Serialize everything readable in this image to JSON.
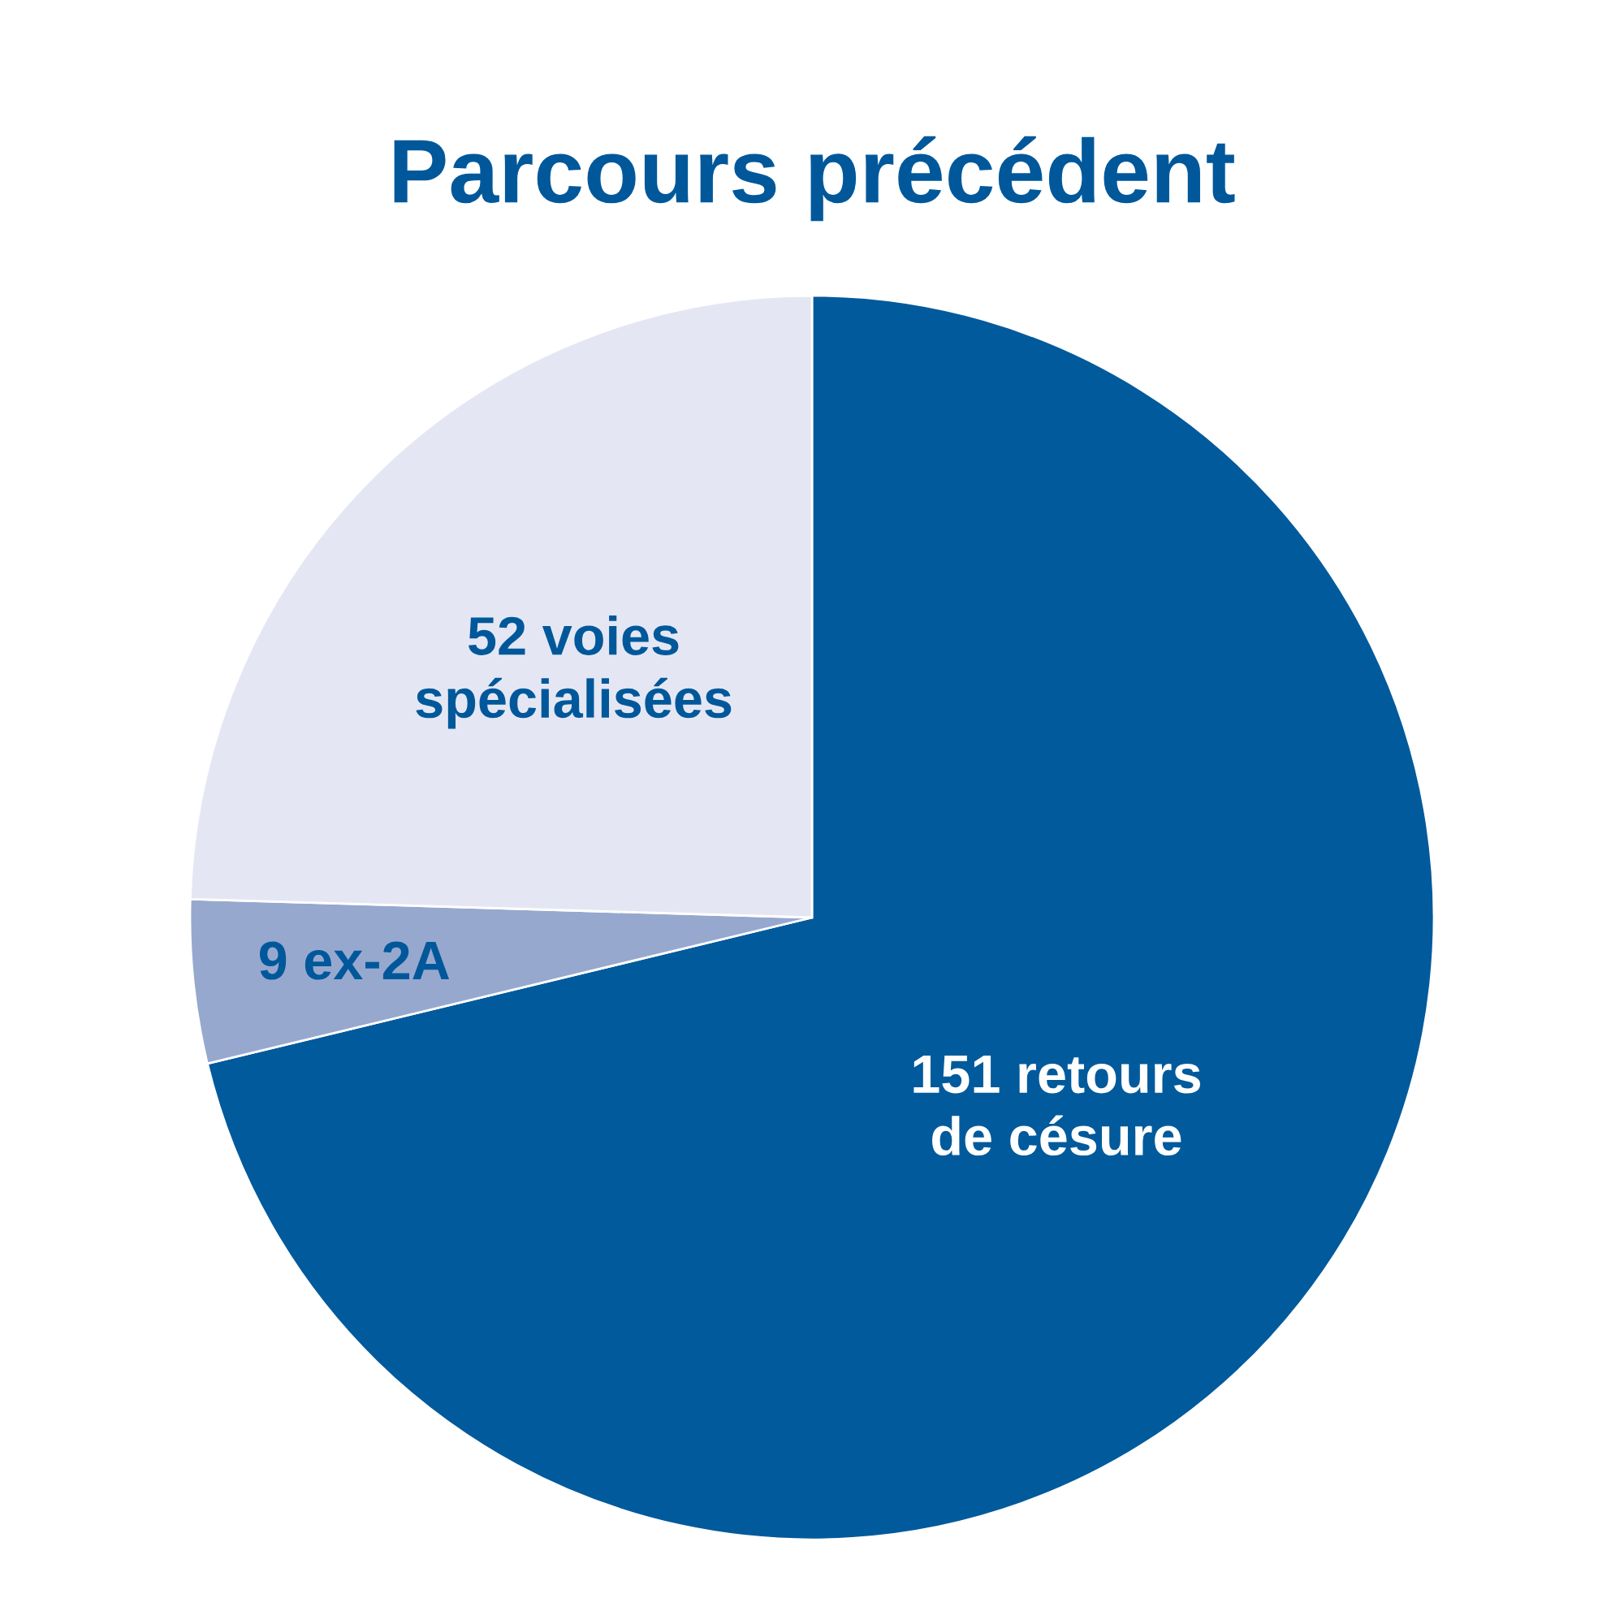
{
  "chart_data": {
    "type": "pie",
    "title": "Parcours précédent",
    "categories": [
      "151 retours\nde césure",
      "9 ex-2A",
      "52 voies\nspécialisées"
    ],
    "values": [
      151,
      9,
      52
    ],
    "colors": [
      "#005a9c",
      "#97a8cf",
      "#e4e7f3"
    ],
    "legend": false
  }
}
